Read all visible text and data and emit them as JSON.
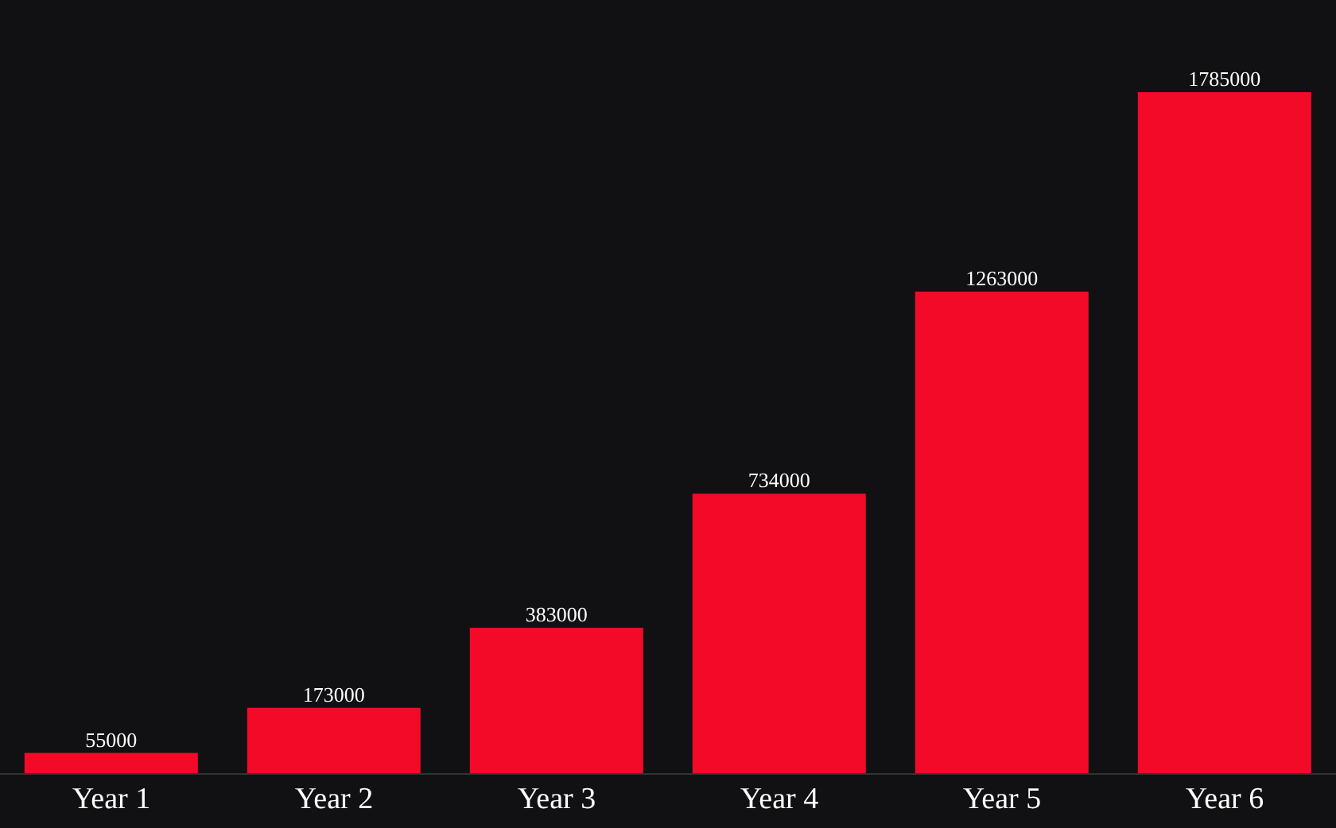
{
  "chart_data": {
    "type": "bar",
    "categories": [
      "Year 1",
      "Year 2",
      "Year 3",
      "Year 4",
      "Year 5",
      "Year 6"
    ],
    "values": [
      55000,
      173000,
      383000,
      734000,
      1263000,
      1785000
    ],
    "color": "#f20a28",
    "data_labels": true,
    "grid": false,
    "legend": false
  }
}
